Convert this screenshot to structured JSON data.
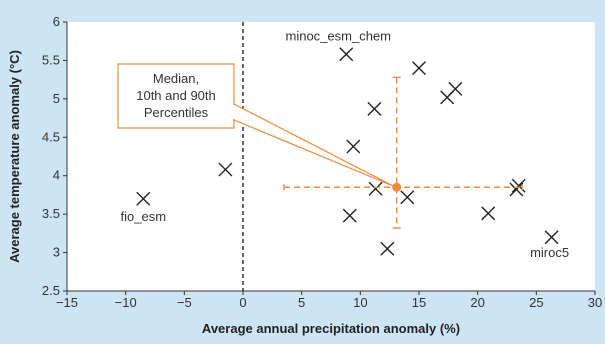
{
  "chart_data": {
    "type": "scatter",
    "xlabel": "Average annual precipitation anomaly (%)",
    "ylabel": "Average temperature anomaly (°C)",
    "xlim": [
      -15,
      30
    ],
    "ylim": [
      2.5,
      6
    ],
    "xticks": [
      -15,
      -10,
      -5,
      0,
      5,
      10,
      15,
      20,
      25,
      30
    ],
    "yticks": [
      2.5,
      3,
      3.5,
      4,
      4.5,
      5,
      5.5,
      6
    ],
    "grid": false,
    "points": [
      {
        "x": -8.5,
        "y": 3.7,
        "label": "fio_esm"
      },
      {
        "x": -1.5,
        "y": 4.08,
        "label": ""
      },
      {
        "x": 8.8,
        "y": 5.58,
        "label": "minoc_esm_chem"
      },
      {
        "x": 15.0,
        "y": 5.4,
        "label": ""
      },
      {
        "x": 11.2,
        "y": 4.87,
        "label": ""
      },
      {
        "x": 17.4,
        "y": 5.02,
        "label": ""
      },
      {
        "x": 18.1,
        "y": 5.13,
        "label": ""
      },
      {
        "x": 9.4,
        "y": 4.38,
        "label": ""
      },
      {
        "x": 11.3,
        "y": 3.83,
        "label": ""
      },
      {
        "x": 9.1,
        "y": 3.48,
        "label": ""
      },
      {
        "x": 14.0,
        "y": 3.72,
        "label": ""
      },
      {
        "x": 12.3,
        "y": 3.05,
        "label": ""
      },
      {
        "x": 20.9,
        "y": 3.51,
        "label": ""
      },
      {
        "x": 23.3,
        "y": 3.82,
        "label": ""
      },
      {
        "x": 23.5,
        "y": 3.87,
        "label": ""
      },
      {
        "x": 26.3,
        "y": 3.2,
        "label": "miroc5"
      }
    ],
    "reference_line": {
      "x": 0,
      "style": "dashed"
    },
    "median": {
      "x": 13.1,
      "y": 3.85,
      "x_range": [
        3.5,
        23.8
      ],
      "y_range": [
        3.32,
        5.28
      ],
      "annotation": "Median, 10th and 90th Percentiles",
      "annotation_lines": [
        "Median,",
        "10th and 90th",
        "Percentiles"
      ]
    },
    "colors": {
      "background": "#cce4f4",
      "plot_area": "#ffffff",
      "marker": "#222222",
      "median": "#f08a3c",
      "axis": "#333333"
    }
  }
}
